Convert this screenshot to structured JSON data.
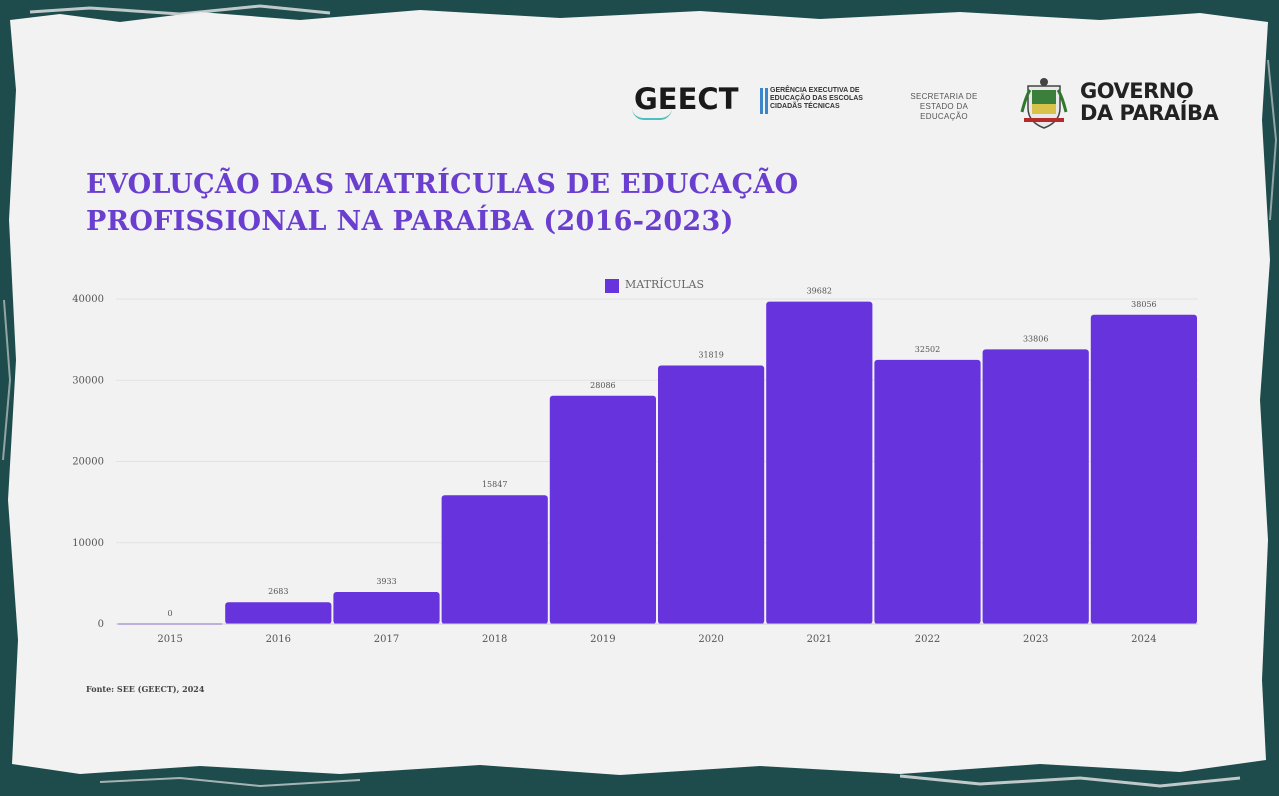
{
  "header": {
    "geect_logo_text": "GEECT",
    "geect_description": "Gerência Executiva de Educação das Escolas Cidadãs Técnicas",
    "secretaria_text": "Secretaria de Estado da Educação",
    "governo_line1": "GOVERNO",
    "governo_line2": "DA PARAÍBA"
  },
  "title_line1": "EVOLUÇÃO DAS MATRÍCULAS DE EDUCAÇÃO",
  "title_line2": "PROFISSIONAL NA PARAÍBA (2016-2023)",
  "source": "Fonte: SEE (GEECT), 2024",
  "colors": {
    "bar": "#6633dd",
    "title": "#6a3fd0",
    "background": "#f2f2f2",
    "frame": "#1e4b4b"
  },
  "chart_data": {
    "type": "bar",
    "categories": [
      "2015",
      "2016",
      "2017",
      "2018",
      "2019",
      "2020",
      "2021",
      "2022",
      "2023",
      "2024"
    ],
    "series": [
      {
        "name": "MATRÍCULAS",
        "values": [
          0,
          2683,
          3933,
          15847,
          28086,
          31819,
          39682,
          32502,
          33806,
          38056
        ]
      }
    ],
    "yticks": [
      0,
      10000,
      20000,
      30000,
      40000
    ],
    "ylim": [
      0,
      40000
    ],
    "grid": true,
    "legend_position": "top-center",
    "data_labels": [
      "0",
      "2683",
      "3933",
      "15847",
      "28086",
      "31819",
      "39682",
      "32502",
      "33806",
      "38056"
    ]
  }
}
